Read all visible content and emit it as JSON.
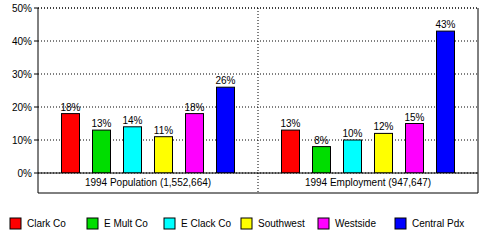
{
  "chart_data": {
    "type": "bar",
    "categories": [
      "1994 Population (1,552,664)",
      "1994 Employment (947,647)"
    ],
    "series": [
      {
        "name": "Clark Co",
        "color": "#ff0000",
        "values": [
          18,
          13
        ],
        "value_labels": [
          "18%",
          "13%"
        ]
      },
      {
        "name": "E Mult Co",
        "color": "#00dd00",
        "values": [
          13,
          8
        ],
        "value_labels": [
          "13%",
          "8%"
        ]
      },
      {
        "name": "E Clack Co",
        "color": "#00ffff",
        "values": [
          14,
          10
        ],
        "value_labels": [
          "14%",
          "10%"
        ]
      },
      {
        "name": "Southwest",
        "color": "#ffff00",
        "values": [
          11,
          12
        ],
        "value_labels": [
          "11%",
          "12%"
        ]
      },
      {
        "name": "Westside",
        "color": "#ff00ff",
        "values": [
          18,
          15
        ],
        "value_labels": [
          "18%",
          "15%"
        ]
      },
      {
        "name": "Central Pdx",
        "color": "#0000ff",
        "values": [
          26,
          43
        ],
        "value_labels": [
          "26%",
          "43%"
        ]
      }
    ],
    "ylim": [
      0,
      50
    ],
    "yticks": [
      {
        "value": 0,
        "label": "0%"
      },
      {
        "value": 10,
        "label": "10%"
      },
      {
        "value": 20,
        "label": "20%"
      },
      {
        "value": 30,
        "label": "30%"
      },
      {
        "value": 40,
        "label": "40%"
      },
      {
        "value": 50,
        "label": "50%"
      }
    ],
    "grid": true,
    "data_labels": true,
    "legend": "bottom"
  }
}
